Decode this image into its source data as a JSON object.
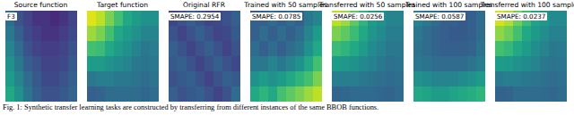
{
  "chart_data": [
    {
      "type": "heatmap",
      "title": "Source function",
      "annotation": "F3",
      "color": "viridis",
      "zlim": [
        0,
        1
      ],
      "tick_labels": false,
      "cells": [
        [
          0.35,
          0.25,
          0.2,
          0.15,
          0.15,
          0.12,
          0.15,
          0.2
        ],
        [
          0.4,
          0.3,
          0.22,
          0.18,
          0.15,
          0.15,
          0.18,
          0.22
        ],
        [
          0.45,
          0.35,
          0.25,
          0.2,
          0.18,
          0.18,
          0.2,
          0.25
        ],
        [
          0.5,
          0.4,
          0.3,
          0.25,
          0.2,
          0.2,
          0.22,
          0.28
        ],
        [
          0.55,
          0.45,
          0.35,
          0.28,
          0.22,
          0.22,
          0.25,
          0.3
        ],
        [
          0.6,
          0.5,
          0.38,
          0.3,
          0.25,
          0.25,
          0.28,
          0.32
        ]
      ]
    },
    {
      "type": "heatmap",
      "title": "Target function",
      "color": "viridis",
      "zlim": [
        0,
        1
      ],
      "tick_labels": false,
      "cells": [
        [
          0.95,
          0.9,
          0.8,
          0.7,
          0.6,
          0.55,
          0.5,
          0.5
        ],
        [
          0.85,
          0.8,
          0.7,
          0.6,
          0.55,
          0.5,
          0.45,
          0.45
        ],
        [
          0.7,
          0.68,
          0.6,
          0.55,
          0.5,
          0.45,
          0.4,
          0.42
        ],
        [
          0.55,
          0.55,
          0.5,
          0.48,
          0.45,
          0.4,
          0.38,
          0.4
        ],
        [
          0.4,
          0.42,
          0.42,
          0.4,
          0.4,
          0.38,
          0.35,
          0.38
        ],
        [
          0.3,
          0.32,
          0.35,
          0.35,
          0.35,
          0.35,
          0.33,
          0.35
        ]
      ]
    },
    {
      "type": "heatmap",
      "title": "Original RFR",
      "annotation": "SMAPE: 0.2954",
      "color": "viridis",
      "zlim": [
        0,
        1
      ],
      "tick_labels": false,
      "cells": [
        [
          0.2,
          0.25,
          0.3,
          0.25,
          0.2,
          0.22,
          0.25,
          0.3
        ],
        [
          0.25,
          0.2,
          0.25,
          0.3,
          0.25,
          0.2,
          0.22,
          0.28
        ],
        [
          0.3,
          0.25,
          0.2,
          0.25,
          0.3,
          0.25,
          0.2,
          0.25
        ],
        [
          0.28,
          0.3,
          0.25,
          0.2,
          0.25,
          0.3,
          0.25,
          0.22
        ],
        [
          0.25,
          0.28,
          0.3,
          0.25,
          0.2,
          0.25,
          0.3,
          0.28
        ],
        [
          0.3,
          0.25,
          0.28,
          0.3,
          0.25,
          0.2,
          0.25,
          0.35
        ]
      ]
    },
    {
      "type": "heatmap",
      "title": "Trained with 50 samples",
      "annotation": "SMAPE: 0.0785",
      "color": "viridis",
      "zlim": [
        0,
        1
      ],
      "tick_labels": false,
      "cells": [
        [
          0.3,
          0.3,
          0.35,
          0.3,
          0.35,
          0.3,
          0.4,
          0.45
        ],
        [
          0.3,
          0.35,
          0.3,
          0.35,
          0.3,
          0.35,
          0.45,
          0.55
        ],
        [
          0.35,
          0.3,
          0.35,
          0.3,
          0.35,
          0.4,
          0.5,
          0.6
        ],
        [
          0.4,
          0.4,
          0.45,
          0.4,
          0.45,
          0.5,
          0.6,
          0.7
        ],
        [
          0.5,
          0.55,
          0.5,
          0.55,
          0.6,
          0.65,
          0.7,
          0.8
        ],
        [
          0.6,
          0.65,
          0.6,
          0.7,
          0.75,
          0.8,
          0.85,
          0.9
        ]
      ]
    },
    {
      "type": "heatmap",
      "title": "Transferred with 50 samples",
      "annotation": "SMAPE: 0.0256",
      "color": "viridis",
      "zlim": [
        0,
        1
      ],
      "tick_labels": false,
      "cells": [
        [
          0.9,
          0.85,
          0.75,
          0.65,
          0.55,
          0.5,
          0.45,
          0.45
        ],
        [
          0.8,
          0.75,
          0.68,
          0.6,
          0.52,
          0.48,
          0.42,
          0.42
        ],
        [
          0.68,
          0.65,
          0.6,
          0.55,
          0.48,
          0.44,
          0.4,
          0.4
        ],
        [
          0.55,
          0.53,
          0.5,
          0.47,
          0.44,
          0.4,
          0.37,
          0.38
        ],
        [
          0.42,
          0.42,
          0.42,
          0.4,
          0.38,
          0.36,
          0.34,
          0.36
        ],
        [
          0.32,
          0.33,
          0.34,
          0.34,
          0.34,
          0.33,
          0.32,
          0.34
        ]
      ]
    },
    {
      "type": "heatmap",
      "title": "Trained with 100 samples",
      "annotation": "SMAPE: 0.0587",
      "color": "viridis",
      "zlim": [
        0,
        1
      ],
      "tick_labels": false,
      "cells": [
        [
          0.45,
          0.4,
          0.35,
          0.3,
          0.3,
          0.28,
          0.3,
          0.35
        ],
        [
          0.4,
          0.35,
          0.32,
          0.3,
          0.28,
          0.28,
          0.3,
          0.35
        ],
        [
          0.38,
          0.35,
          0.32,
          0.3,
          0.3,
          0.3,
          0.32,
          0.38
        ],
        [
          0.4,
          0.38,
          0.35,
          0.35,
          0.35,
          0.35,
          0.38,
          0.42
        ],
        [
          0.5,
          0.48,
          0.45,
          0.45,
          0.45,
          0.48,
          0.5,
          0.55
        ],
        [
          0.6,
          0.58,
          0.55,
          0.55,
          0.58,
          0.6,
          0.62,
          0.65
        ]
      ]
    },
    {
      "type": "heatmap",
      "title": "Transferred with 100 samples",
      "annotation": "SMAPE: 0.0237",
      "color": "viridis",
      "zlim": [
        0,
        1
      ],
      "tick_labels": false,
      "cells": [
        [
          0.93,
          0.88,
          0.78,
          0.68,
          0.58,
          0.53,
          0.48,
          0.48
        ],
        [
          0.83,
          0.78,
          0.7,
          0.6,
          0.54,
          0.49,
          0.44,
          0.44
        ],
        [
          0.7,
          0.67,
          0.6,
          0.55,
          0.49,
          0.45,
          0.4,
          0.41
        ],
        [
          0.55,
          0.54,
          0.5,
          0.48,
          0.45,
          0.4,
          0.38,
          0.39
        ],
        [
          0.41,
          0.42,
          0.42,
          0.4,
          0.39,
          0.37,
          0.35,
          0.37
        ],
        [
          0.31,
          0.32,
          0.35,
          0.35,
          0.35,
          0.34,
          0.33,
          0.35
        ]
      ]
    }
  ],
  "caption": "Fig. 1: Synthetic transfer learning tasks are constructed by transferring from different instances of the same BBOB functions."
}
